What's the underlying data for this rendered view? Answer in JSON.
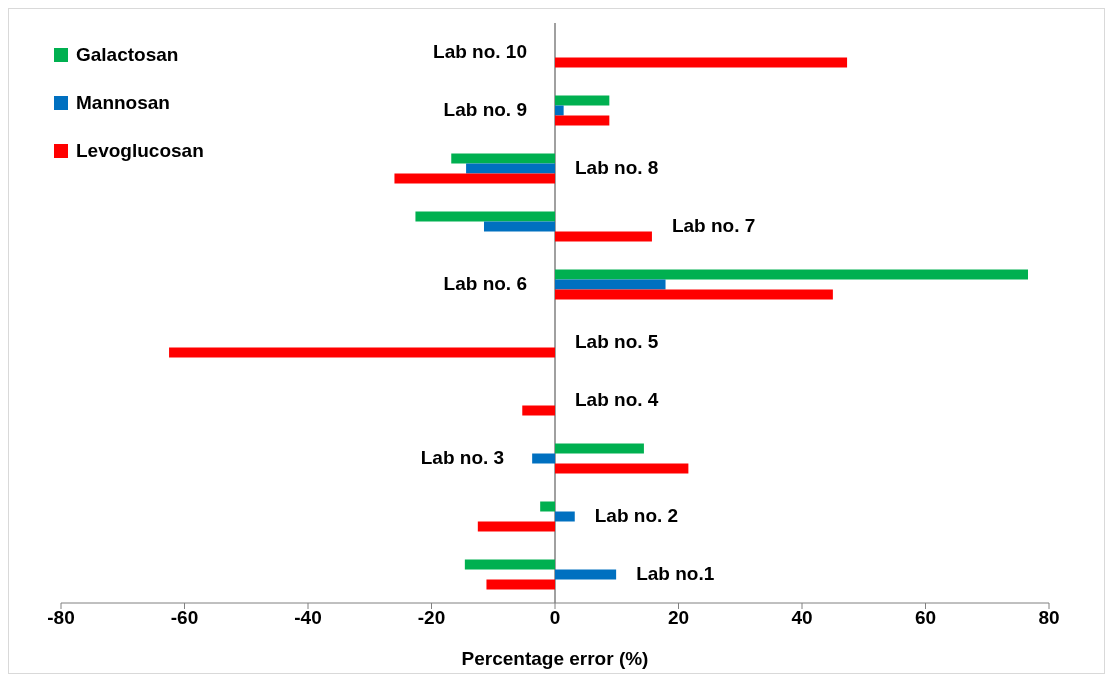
{
  "chart_data": {
    "type": "bar",
    "orientation": "horizontal",
    "xlabel": "Percentage error (%)",
    "categories": [
      "Lab no. 10",
      "Lab no. 9",
      "Lab no. 8",
      "Lab no. 7",
      "Lab no. 6",
      "Lab no. 5",
      "Lab no. 4",
      "Lab no. 3",
      "Lab no. 2",
      "Lab no.1"
    ],
    "series": [
      {
        "name": "Galactosan",
        "color": "#00b050",
        "values": [
          null,
          8.8,
          -16.8,
          -22.6,
          76.6,
          null,
          null,
          14.4,
          -2.4,
          -14.6
        ]
      },
      {
        "name": "Mannosan",
        "color": "#0070c0",
        "values": [
          null,
          1.4,
          -14.4,
          -11.5,
          17.9,
          null,
          null,
          -3.7,
          3.2,
          9.9
        ]
      },
      {
        "name": "Levoglucosan",
        "color": "#ff0000",
        "values": [
          47.3,
          8.8,
          -26,
          15.7,
          45,
          -62.5,
          -5.3,
          21.6,
          -12.5,
          -11.1
        ]
      }
    ],
    "xlim": [
      -80,
      80
    ],
    "xticks": [
      -80,
      -60,
      -40,
      -20,
      0,
      20,
      40,
      60,
      80
    ],
    "grid": false,
    "legend": "top left"
  }
}
